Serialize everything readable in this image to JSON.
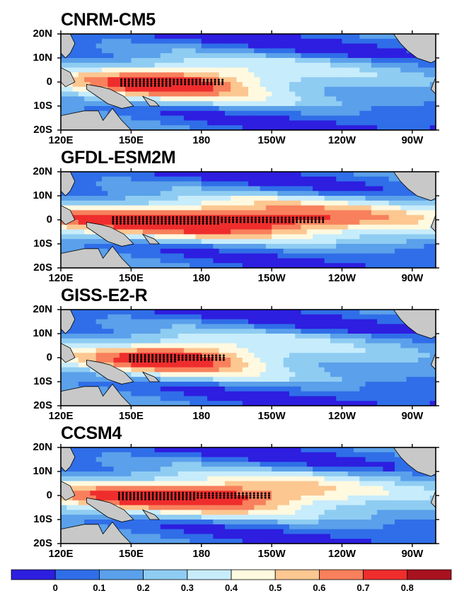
{
  "panels": [
    {
      "title": "CNRM-CM5",
      "peak": 0.66,
      "core_width": 0.42,
      "core_center": 0.3
    },
    {
      "title": "GFDL-ESM2M",
      "peak": 0.76,
      "core_width": 0.85,
      "core_center": 0.42
    },
    {
      "title": "GISS-E2-R",
      "peak": 0.66,
      "core_width": 0.38,
      "core_center": 0.31
    },
    {
      "title": "CCSM4",
      "peak": 0.72,
      "core_width": 0.62,
      "core_center": 0.36
    }
  ],
  "lat_labels": [
    "20N",
    "10N",
    "0",
    "10S",
    "20S"
  ],
  "lon_labels": [
    "120E",
    "150E",
    "180",
    "150W",
    "120W",
    "90W"
  ],
  "colorbar": {
    "labels": [
      "0",
      "0.1",
      "0.2",
      "0.3",
      "0.4",
      "0.5",
      "0.6",
      "0.7",
      "0.8"
    ],
    "colors": [
      "#2d1ee0",
      "#2f6ee8",
      "#5aa0ea",
      "#8fccf2",
      "#c7ecfb",
      "#fff9e0",
      "#fcc791",
      "#f8805c",
      "#ef2d2d",
      "#a8121f"
    ]
  },
  "land_color": "#c8c8c8"
}
